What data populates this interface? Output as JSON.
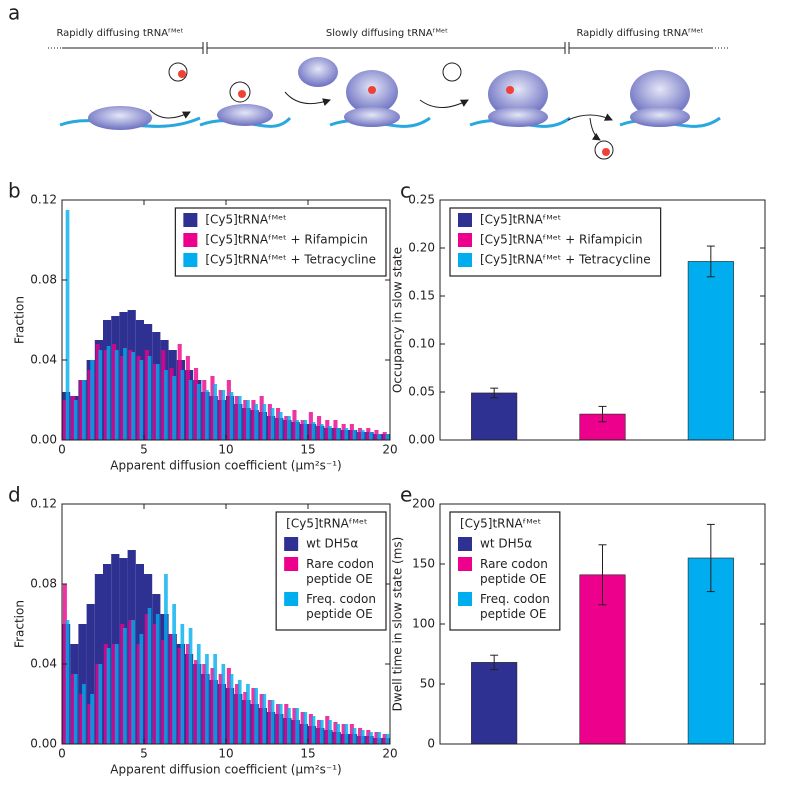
{
  "panel_labels": [
    "a",
    "b",
    "c",
    "d",
    "e"
  ],
  "schematic": {
    "labels": [
      "Rapidly diffusing tRNAᶠᴹᵉᵗ",
      "Slowly diffusing tRNAᶠᴹᵉᵗ",
      "Rapidly diffusing tRNAᶠᴹᵉᵗ"
    ]
  },
  "chart_data": [
    {
      "type": "histogram",
      "xlabel": "Apparent diffusion coefficient (μm²s⁻¹)",
      "ylabel": "Fraction",
      "bins": [
        0,
        0.5,
        1,
        1.5,
        2,
        2.5,
        3,
        3.5,
        4,
        4.5,
        5,
        5.5,
        6,
        6.5,
        7,
        7.5,
        8,
        8.5,
        9,
        9.5,
        10,
        10.5,
        11,
        11.5,
        12,
        12.5,
        13,
        13.5,
        14,
        14.5,
        15,
        15.5,
        16,
        16.5,
        17,
        17.5,
        18,
        18.5,
        19,
        19.5,
        20
      ],
      "xlim": [
        0,
        20
      ],
      "xticks": [
        0,
        5,
        10,
        15,
        20
      ],
      "ylim": [
        0,
        0.12
      ],
      "yticks": [
        {
          "value": 0,
          "label": "0.00"
        },
        {
          "value": 0.04,
          "label": "0.04"
        },
        {
          "value": 0.08,
          "label": "0.08"
        },
        {
          "value": 0.12,
          "label": "0.12"
        }
      ],
      "legend": "upper right",
      "series": [
        {
          "name": "[Cy5]tRNAᶠᴹᵉᵗ",
          "color": "#2e3192",
          "values": [
            0.024,
            0.022,
            0.03,
            0.04,
            0.05,
            0.06,
            0.062,
            0.064,
            0.065,
            0.06,
            0.058,
            0.054,
            0.05,
            0.045,
            0.04,
            0.035,
            0.03,
            0.024,
            0.022,
            0.02,
            0.022,
            0.018,
            0.016,
            0.015,
            0.014,
            0.012,
            0.011,
            0.01,
            0.009,
            0.008,
            0.008,
            0.007,
            0.006,
            0.006,
            0.005,
            0.005,
            0.004,
            0.004,
            0.003,
            0.003
          ]
        },
        {
          "name": "[Cy5]tRNAᶠᴹᵉᵗ + Rifampicin",
          "color": "#ec008c",
          "values": [
            0.02,
            0.022,
            0.03,
            0.035,
            0.048,
            0.045,
            0.048,
            0.042,
            0.045,
            0.042,
            0.045,
            0.038,
            0.045,
            0.036,
            0.048,
            0.042,
            0.036,
            0.03,
            0.032,
            0.025,
            0.03,
            0.022,
            0.02,
            0.02,
            0.022,
            0.018,
            0.016,
            0.012,
            0.015,
            0.01,
            0.014,
            0.012,
            0.01,
            0.01,
            0.008,
            0.008,
            0.006,
            0.006,
            0.005,
            0.004
          ]
        },
        {
          "name": "[Cy5]tRNAᶠᴹᵉᵗ + Tetracycline",
          "color": "#00aeef",
          "values": [
            0.115,
            0.02,
            0.03,
            0.04,
            0.045,
            0.047,
            0.045,
            0.046,
            0.044,
            0.04,
            0.042,
            0.038,
            0.035,
            0.032,
            0.035,
            0.03,
            0.028,
            0.025,
            0.028,
            0.025,
            0.024,
            0.022,
            0.02,
            0.018,
            0.018,
            0.016,
            0.014,
            0.012,
            0.01,
            0.01,
            0.009,
            0.008,
            0.007,
            0.006,
            0.006,
            0.005,
            0.005,
            0.004,
            0.003,
            0.003
          ]
        }
      ]
    },
    {
      "type": "bar",
      "ylabel": "Occupancy in slow state",
      "ylim": [
        0,
        0.25
      ],
      "yticks": [
        {
          "value": 0,
          "label": "0.00"
        },
        {
          "value": 0.05,
          "label": "0.05"
        },
        {
          "value": 0.1,
          "label": "0.10"
        },
        {
          "value": 0.15,
          "label": "0.15"
        },
        {
          "value": 0.2,
          "label": "0.20"
        },
        {
          "value": 0.25,
          "label": "0.25"
        }
      ],
      "legend": "upper left",
      "series": [
        {
          "name": "[Cy5]tRNAᶠᴹᵉᵗ",
          "color": "#2e3192",
          "values": [
            0.049
          ],
          "errors": [
            0.005
          ]
        },
        {
          "name": "[Cy5]tRNAᶠᴹᵉᵗ + Rifampicin",
          "color": "#ec008c",
          "values": [
            0.027
          ],
          "errors": [
            0.008
          ]
        },
        {
          "name": "[Cy5]tRNAᶠᴹᵉᵗ + Tetracycline",
          "color": "#00aeef",
          "values": [
            0.186
          ],
          "errors": [
            0.016
          ]
        }
      ]
    },
    {
      "type": "histogram",
      "xlabel": "Apparent diffusion coefficient (μm²s⁻¹)",
      "ylabel": "Fraction",
      "bins": [
        0,
        0.5,
        1,
        1.5,
        2,
        2.5,
        3,
        3.5,
        4,
        4.5,
        5,
        5.5,
        6,
        6.5,
        7,
        7.5,
        8,
        8.5,
        9,
        9.5,
        10,
        10.5,
        11,
        11.5,
        12,
        12.5,
        13,
        13.5,
        14,
        14.5,
        15,
        15.5,
        16,
        16.5,
        17,
        17.5,
        18,
        18.5,
        19,
        19.5,
        20
      ],
      "xlim": [
        0,
        20
      ],
      "xticks": [
        0,
        5,
        10,
        15,
        20
      ],
      "ylim": [
        0,
        0.12
      ],
      "yticks": [
        {
          "value": 0,
          "label": "0.00"
        },
        {
          "value": 0.04,
          "label": "0.04"
        },
        {
          "value": 0.08,
          "label": "0.08"
        },
        {
          "value": 0.12,
          "label": "0.12"
        }
      ],
      "legend": "upper right",
      "legend_title": "[Cy5]tRNAᶠᴹᵉᵗ",
      "series": [
        {
          "name": "wt DH5α",
          "color": "#2e3192",
          "values": [
            0.06,
            0.05,
            0.06,
            0.07,
            0.085,
            0.09,
            0.095,
            0.093,
            0.097,
            0.09,
            0.085,
            0.075,
            0.065,
            0.055,
            0.05,
            0.045,
            0.04,
            0.035,
            0.032,
            0.03,
            0.028,
            0.025,
            0.022,
            0.02,
            0.018,
            0.016,
            0.015,
            0.013,
            0.012,
            0.01,
            0.009,
            0.008,
            0.007,
            0.006,
            0.005,
            0.005,
            0.004,
            0.004,
            0.003,
            0.003
          ]
        },
        {
          "name": "Rare codon\npeptide OE",
          "color": "#ec008c",
          "values": [
            0.08,
            0.035,
            0.025,
            0.02,
            0.04,
            0.05,
            0.05,
            0.06,
            0.062,
            0.05,
            0.065,
            0.06,
            0.052,
            0.055,
            0.048,
            0.05,
            0.042,
            0.04,
            0.038,
            0.035,
            0.038,
            0.03,
            0.026,
            0.028,
            0.025,
            0.022,
            0.02,
            0.02,
            0.018,
            0.016,
            0.015,
            0.012,
            0.014,
            0.011,
            0.01,
            0.01,
            0.008,
            0.007,
            0.006,
            0.005
          ]
        },
        {
          "name": "Freq. codon\npeptide OE",
          "color": "#00aeef",
          "values": [
            0.062,
            0.035,
            0.03,
            0.025,
            0.04,
            0.048,
            0.05,
            0.058,
            0.062,
            0.055,
            0.068,
            0.065,
            0.085,
            0.07,
            0.06,
            0.058,
            0.05,
            0.045,
            0.045,
            0.04,
            0.035,
            0.032,
            0.03,
            0.028,
            0.025,
            0.022,
            0.02,
            0.018,
            0.018,
            0.016,
            0.014,
            0.012,
            0.012,
            0.01,
            0.01,
            0.008,
            0.007,
            0.006,
            0.006,
            0.005
          ]
        }
      ]
    },
    {
      "type": "bar",
      "ylabel": "Dwell time  in slow state (ms)",
      "ylim": [
        0,
        200
      ],
      "yticks": [
        0,
        50,
        100,
        150,
        200
      ],
      "legend": "upper left",
      "legend_title": "[Cy5]tRNAᶠᴹᵉᵗ",
      "series": [
        {
          "name": "wt DH5α",
          "color": "#2e3192",
          "values": [
            68
          ],
          "errors": [
            6
          ]
        },
        {
          "name": "Rare codon\npeptide OE",
          "color": "#ec008c",
          "values": [
            141
          ],
          "errors": [
            25
          ]
        },
        {
          "name": "Freq. codon\npeptide OE",
          "color": "#00aeef",
          "values": [
            155
          ],
          "errors": [
            28
          ]
        }
      ]
    }
  ]
}
